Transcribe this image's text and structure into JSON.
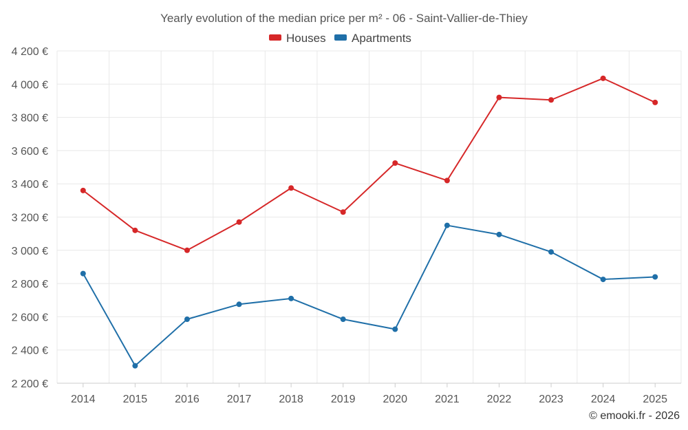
{
  "chart_data": {
    "type": "line",
    "title": "Yearly evolution of the median price per m² - 06 - Saint-Vallier-de-Thiey",
    "categories": [
      "2014",
      "2015",
      "2016",
      "2017",
      "2018",
      "2019",
      "2020",
      "2021",
      "2022",
      "2023",
      "2024",
      "2025"
    ],
    "series": [
      {
        "name": "Houses",
        "color": "#d62728",
        "values": [
          3360,
          3120,
          3000,
          3170,
          3375,
          3230,
          3525,
          3420,
          3920,
          3905,
          4035,
          3890
        ]
      },
      {
        "name": "Apartments",
        "color": "#1f6fa8",
        "values": [
          2860,
          2305,
          2585,
          2675,
          2710,
          2585,
          2525,
          3150,
          3095,
          2990,
          2825,
          2840
        ]
      }
    ],
    "y_ticks": [
      "2 200 €",
      "2 400 €",
      "2 600 €",
      "2 800 €",
      "3 000 €",
      "3 200 €",
      "3 400 €",
      "3 600 €",
      "3 800 €",
      "4 000 €",
      "4 200 €"
    ],
    "ylim": [
      2200,
      4200
    ],
    "xlabel": "",
    "ylabel": "",
    "legend_position": "top-center",
    "grid": true
  },
  "credit": "© emooki.fr - 2026"
}
